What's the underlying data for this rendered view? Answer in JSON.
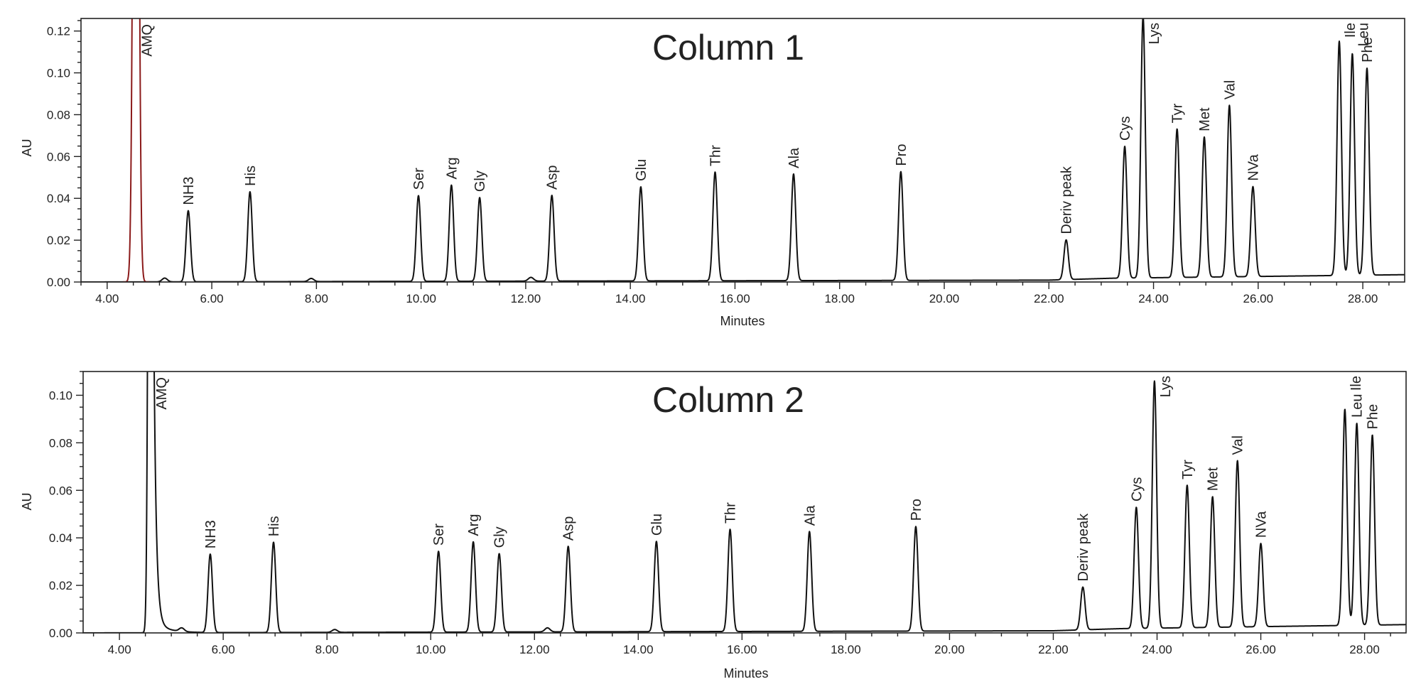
{
  "chart_data": [
    {
      "type": "line",
      "title": "Column 1",
      "xlabel": "Minutes",
      "ylabel": "AU",
      "xlim": [
        3.5,
        28.8
      ],
      "ylim": [
        0.0,
        0.126
      ],
      "x_ticks": [
        "4.00",
        "6.00",
        "8.00",
        "10.00",
        "12.00",
        "14.00",
        "16.00",
        "18.00",
        "20.00",
        "22.00",
        "24.00",
        "26.00",
        "28.00"
      ],
      "y_ticks": [
        "0.00",
        "0.02",
        "0.04",
        "0.06",
        "0.08",
        "0.10",
        "0.12"
      ],
      "grid": false,
      "solvent_peak": {
        "label": "AMQ",
        "x": 4.55,
        "color": "#8b1a1a"
      },
      "baseline": {
        "points": [
          [
            3.5,
            0.0
          ],
          [
            20.0,
            0.0008
          ],
          [
            22.0,
            0.0009
          ],
          [
            23.2,
            0.0018
          ],
          [
            28.8,
            0.0035
          ]
        ]
      },
      "minor_peaks": [
        {
          "x": 5.1,
          "y": 0.0018
        },
        {
          "x": 7.9,
          "y": 0.0015
        },
        {
          "x": 12.1,
          "y": 0.0018
        }
      ],
      "peaks": [
        {
          "label": "NH3",
          "x": 5.55,
          "y": 0.034
        },
        {
          "label": "His",
          "x": 6.73,
          "y": 0.043
        },
        {
          "label": "Ser",
          "x": 9.95,
          "y": 0.041
        },
        {
          "label": "Arg",
          "x": 10.58,
          "y": 0.046
        },
        {
          "label": "Gly",
          "x": 11.12,
          "y": 0.04
        },
        {
          "label": "Asp",
          "x": 12.5,
          "y": 0.041
        },
        {
          "label": "Glu",
          "x": 14.2,
          "y": 0.045
        },
        {
          "label": "Thr",
          "x": 15.62,
          "y": 0.052
        },
        {
          "label": "Ala",
          "x": 17.12,
          "y": 0.051
        },
        {
          "label": "Pro",
          "x": 19.17,
          "y": 0.052
        },
        {
          "label": "Deriv peak",
          "x": 22.33,
          "y": 0.019
        },
        {
          "label": "Cys",
          "x": 23.45,
          "y": 0.063
        },
        {
          "label": "Lys",
          "x": 23.8,
          "y": 0.125
        },
        {
          "label": "Tyr",
          "x": 24.45,
          "y": 0.071
        },
        {
          "label": "Met",
          "x": 24.97,
          "y": 0.067
        },
        {
          "label": "Val",
          "x": 25.45,
          "y": 0.082
        },
        {
          "label": "NVa",
          "x": 25.9,
          "y": 0.043
        },
        {
          "label": "Ile",
          "x": 27.55,
          "y": 0.112
        },
        {
          "label": "Leu",
          "x": 27.8,
          "y": 0.106
        },
        {
          "label": "Phe",
          "x": 28.08,
          "y": 0.099
        }
      ]
    },
    {
      "type": "line",
      "title": "Column 2",
      "xlabel": "Minutes",
      "ylabel": "AU",
      "xlim": [
        3.3,
        28.8
      ],
      "ylim": [
        0.0,
        0.11
      ],
      "x_ticks": [
        "4.00",
        "6.00",
        "8.00",
        "10.00",
        "12.00",
        "14.00",
        "16.00",
        "18.00",
        "20.00",
        "22.00",
        "24.00",
        "26.00",
        "28.00"
      ],
      "y_ticks": [
        "0.00",
        "0.02",
        "0.04",
        "0.06",
        "0.08",
        "0.10"
      ],
      "grid": false,
      "solvent_peak": {
        "label": "AMQ",
        "x": 4.6,
        "color": "#111111"
      },
      "baseline": {
        "points": [
          [
            3.3,
            0.0
          ],
          [
            20.0,
            0.0008
          ],
          [
            22.0,
            0.0009
          ],
          [
            23.3,
            0.0018
          ],
          [
            28.8,
            0.0035
          ]
        ]
      },
      "minor_peaks": [
        {
          "x": 5.2,
          "y": 0.0015
        },
        {
          "x": 8.15,
          "y": 0.0012
        },
        {
          "x": 12.25,
          "y": 0.0017
        }
      ],
      "peaks": [
        {
          "label": "NH3",
          "x": 5.75,
          "y": 0.033
        },
        {
          "label": "His",
          "x": 6.97,
          "y": 0.038
        },
        {
          "label": "Ser",
          "x": 10.15,
          "y": 0.034
        },
        {
          "label": "Arg",
          "x": 10.82,
          "y": 0.038
        },
        {
          "label": "Gly",
          "x": 11.32,
          "y": 0.033
        },
        {
          "label": "Asp",
          "x": 12.65,
          "y": 0.036
        },
        {
          "label": "Glu",
          "x": 14.35,
          "y": 0.038
        },
        {
          "label": "Thr",
          "x": 15.77,
          "y": 0.043
        },
        {
          "label": "Ala",
          "x": 17.3,
          "y": 0.042
        },
        {
          "label": "Pro",
          "x": 19.35,
          "y": 0.044
        },
        {
          "label": "Deriv peak",
          "x": 22.57,
          "y": 0.018
        },
        {
          "label": "Cys",
          "x": 23.6,
          "y": 0.051
        },
        {
          "label": "Lys",
          "x": 23.95,
          "y": 0.104
        },
        {
          "label": "Tyr",
          "x": 24.58,
          "y": 0.06
        },
        {
          "label": "Met",
          "x": 25.07,
          "y": 0.055
        },
        {
          "label": "Val",
          "x": 25.55,
          "y": 0.07
        },
        {
          "label": "NVa",
          "x": 26.0,
          "y": 0.035
        },
        {
          "label": "Ile",
          "x": 27.62,
          "y": 0.091
        },
        {
          "label": "Leu",
          "x": 27.85,
          "y": 0.085
        },
        {
          "label": "Phe",
          "x": 28.15,
          "y": 0.08
        }
      ]
    }
  ]
}
